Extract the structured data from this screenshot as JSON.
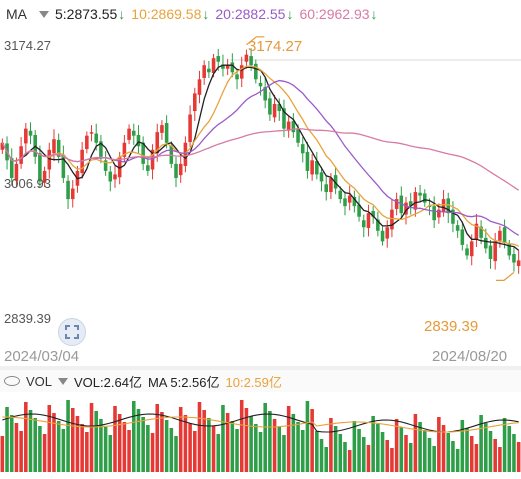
{
  "ma_header": {
    "title": "MA",
    "ma5": "5:2873.55",
    "ma10": "10:2869.58",
    "ma20": "20:2882.55",
    "ma60": "60:2962.93",
    "arrow": "↓"
  },
  "price_axis": {
    "high_label": "3174.27",
    "mid_label": "3006.93",
    "low_label": "2839.39"
  },
  "annotations": {
    "max_price": "3174.27",
    "min_price": "2839.39"
  },
  "dates": {
    "start": "2024/03/04",
    "end": "2024/08/20"
  },
  "vol_header": {
    "title": "VOL",
    "vol": "VOL:2.64亿",
    "ma5": "MA 5:2.56亿",
    "ma10": "10:2.59亿"
  },
  "colors": {
    "up": "#e53935",
    "down": "#2e9e48",
    "ma5": "#222222",
    "ma10": "#e8a33c",
    "ma20": "#9a5bc9",
    "ma60": "#d77ba4",
    "annotation": "#e59a3a"
  },
  "icons": {
    "fit": "fit-screen-icon",
    "dropdown": "chevron-down-icon",
    "eye": "eye-icon"
  },
  "chart_data": {
    "type": "candlestick",
    "x_range": [
      "2024/03/04",
      "2024/08/20"
    ],
    "y_range": [
      2839.39,
      3174.27
    ],
    "close": [
      3040,
      3015,
      2990,
      3010,
      3035,
      3060,
      3050,
      3020,
      2985,
      3000,
      3030,
      3045,
      3020,
      2990,
      2960,
      2975,
      3000,
      3030,
      3050,
      3055,
      3040,
      3020,
      3000,
      2985,
      2995,
      3020,
      3040,
      3060,
      3050,
      3035,
      3010,
      3000,
      3030,
      3055,
      3065,
      3040,
      3010,
      2990,
      3010,
      3040,
      3080,
      3110,
      3130,
      3150,
      3140,
      3160,
      3155,
      3145,
      3150,
      3140,
      3130,
      3150,
      3165,
      3150,
      3130,
      3120,
      3100,
      3080,
      3095,
      3085,
      3060,
      3070,
      3055,
      3040,
      3025,
      3000,
      3015,
      2995,
      2985,
      2970,
      2990,
      2975,
      2960,
      2950,
      2965,
      2950,
      2935,
      2920,
      2940,
      2935,
      2915,
      2900,
      2920,
      2945,
      2960,
      2940,
      2955,
      2950,
      2970,
      2965,
      2955,
      2950,
      2930,
      2945,
      2960,
      2940,
      2925,
      2915,
      2895,
      2880,
      2900,
      2925,
      2905,
      2890,
      2875,
      2900,
      2915,
      2898,
      2880,
      2870,
      2873
    ],
    "ma_values": {
      "ma5": 2873.55,
      "ma10": 2869.58,
      "ma20": 2882.55,
      "ma60": 2962.93
    },
    "volume": {
      "last": "2.64亿",
      "ma5": "2.56亿",
      "ma10": "2.59亿"
    }
  }
}
